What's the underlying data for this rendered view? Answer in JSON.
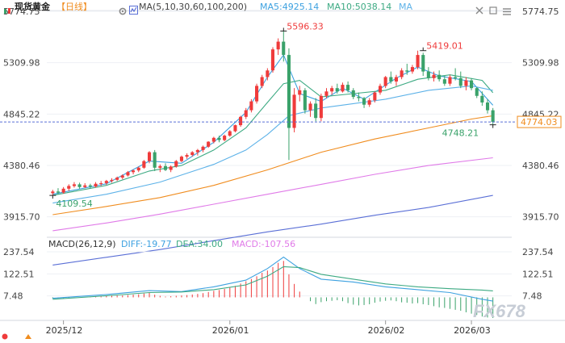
{
  "header": {
    "symbol": "现货黄金",
    "period": "【日线】",
    "ma_label": "MA(5,10,30,60,100,200)",
    "ma5_label": "MA5:4925.14",
    "ma10_label": "MA10:5038.14",
    "ma_extra": "MA"
  },
  "macd": {
    "title": "MACD(26,12,9)",
    "diff_label": "DIFF:-19.77",
    "dea_label": "DEA:34.00",
    "macd_label": "MACD:-107.56"
  },
  "watermark": "FX678",
  "colors": {
    "up": "#ef3b3b",
    "down": "#3aa26a",
    "ma5": "#3da1e0",
    "ma10": "#3daa83",
    "ma30": "#5db2e8",
    "ma60": "#f08c1e",
    "ma100": "#e07ae8",
    "ma200": "#5a6fd6",
    "annot_high": "#ef3b3b",
    "annot_low": "#3aa26a",
    "current": "#f08c1e",
    "diff": "#3da1e0",
    "dea": "#3daa83"
  },
  "chart_data": {
    "type": "candlestick",
    "price_axis": {
      "ticks": [
        "5774.75",
        "5309.98",
        "4845.22",
        "4380.46",
        "3915.70"
      ],
      "range": [
        3760,
        5774.75
      ]
    },
    "macd_axis": {
      "ticks": [
        "237.54",
        "122.51",
        "7.48"
      ],
      "range": [
        -107.56,
        237.54
      ]
    },
    "x_ticks": [
      "2025/12",
      "2026/01",
      "2026/02",
      "2026/03"
    ],
    "annotations": {
      "high": "5596.33",
      "high_value": 5596.33,
      "recent_high": "5419.01",
      "recent_high_value": 5419.01,
      "start_low": "4109.54",
      "start_low_value": 4109.54,
      "recent_low": "4748.21",
      "recent_low_value": 4748.21,
      "current": "4774.03",
      "current_value": 4774.03
    },
    "candles": [
      {
        "o": 4130,
        "h": 4160,
        "l": 4110,
        "c": 4145
      },
      {
        "o": 4145,
        "h": 4175,
        "l": 4120,
        "c": 4135
      },
      {
        "o": 4135,
        "h": 4185,
        "l": 4125,
        "c": 4170
      },
      {
        "o": 4170,
        "h": 4210,
        "l": 4150,
        "c": 4195
      },
      {
        "o": 4195,
        "h": 4230,
        "l": 4180,
        "c": 4210
      },
      {
        "o": 4210,
        "h": 4225,
        "l": 4170,
        "c": 4185
      },
      {
        "o": 4185,
        "h": 4220,
        "l": 4175,
        "c": 4200
      },
      {
        "o": 4200,
        "h": 4215,
        "l": 4170,
        "c": 4190
      },
      {
        "o": 4190,
        "h": 4230,
        "l": 4180,
        "c": 4215
      },
      {
        "o": 4215,
        "h": 4240,
        "l": 4195,
        "c": 4220
      },
      {
        "o": 4220,
        "h": 4250,
        "l": 4205,
        "c": 4240
      },
      {
        "o": 4240,
        "h": 4265,
        "l": 4225,
        "c": 4250
      },
      {
        "o": 4250,
        "h": 4280,
        "l": 4240,
        "c": 4270
      },
      {
        "o": 4270,
        "h": 4300,
        "l": 4255,
        "c": 4290
      },
      {
        "o": 4290,
        "h": 4330,
        "l": 4280,
        "c": 4320
      },
      {
        "o": 4320,
        "h": 4345,
        "l": 4300,
        "c": 4335
      },
      {
        "o": 4335,
        "h": 4370,
        "l": 4320,
        "c": 4360
      },
      {
        "o": 4360,
        "h": 4430,
        "l": 4350,
        "c": 4420
      },
      {
        "o": 4420,
        "h": 4510,
        "l": 4400,
        "c": 4500
      },
      {
        "o": 4500,
        "h": 4520,
        "l": 4330,
        "c": 4360
      },
      {
        "o": 4360,
        "h": 4390,
        "l": 4320,
        "c": 4375
      },
      {
        "o": 4375,
        "h": 4400,
        "l": 4330,
        "c": 4340
      },
      {
        "o": 4340,
        "h": 4380,
        "l": 4320,
        "c": 4370
      },
      {
        "o": 4370,
        "h": 4430,
        "l": 4360,
        "c": 4420
      },
      {
        "o": 4420,
        "h": 4470,
        "l": 4410,
        "c": 4460
      },
      {
        "o": 4460,
        "h": 4490,
        "l": 4440,
        "c": 4475
      },
      {
        "o": 4475,
        "h": 4510,
        "l": 4460,
        "c": 4500
      },
      {
        "o": 4500,
        "h": 4530,
        "l": 4470,
        "c": 4520
      },
      {
        "o": 4520,
        "h": 4560,
        "l": 4500,
        "c": 4550
      },
      {
        "o": 4550,
        "h": 4600,
        "l": 4540,
        "c": 4595
      },
      {
        "o": 4595,
        "h": 4640,
        "l": 4580,
        "c": 4630
      },
      {
        "o": 4630,
        "h": 4650,
        "l": 4590,
        "c": 4610
      },
      {
        "o": 4610,
        "h": 4660,
        "l": 4600,
        "c": 4650
      },
      {
        "o": 4650,
        "h": 4700,
        "l": 4640,
        "c": 4690
      },
      {
        "o": 4690,
        "h": 4750,
        "l": 4680,
        "c": 4745
      },
      {
        "o": 4745,
        "h": 4830,
        "l": 4730,
        "c": 4820
      },
      {
        "o": 4820,
        "h": 4900,
        "l": 4800,
        "c": 4880
      },
      {
        "o": 4880,
        "h": 4980,
        "l": 4860,
        "c": 4960
      },
      {
        "o": 4960,
        "h": 5120,
        "l": 4940,
        "c": 5100
      },
      {
        "o": 5100,
        "h": 5200,
        "l": 5080,
        "c": 5180
      },
      {
        "o": 5180,
        "h": 5260,
        "l": 5150,
        "c": 5240
      },
      {
        "o": 5240,
        "h": 5450,
        "l": 5220,
        "c": 5430
      },
      {
        "o": 5430,
        "h": 5530,
        "l": 5380,
        "c": 5500
      },
      {
        "o": 5500,
        "h": 5596.33,
        "l": 5320,
        "c": 5380
      },
      {
        "o": 5380,
        "h": 5440,
        "l": 4430,
        "c": 4720
      },
      {
        "o": 4720,
        "h": 5080,
        "l": 4680,
        "c": 5020
      },
      {
        "o": 5020,
        "h": 5100,
        "l": 4960,
        "c": 5060
      },
      {
        "o": 5060,
        "h": 5080,
        "l": 4850,
        "c": 4880
      },
      {
        "o": 4880,
        "h": 4960,
        "l": 4820,
        "c": 4940
      },
      {
        "o": 4940,
        "h": 4990,
        "l": 4780,
        "c": 4810
      },
      {
        "o": 4810,
        "h": 5030,
        "l": 4780,
        "c": 5010
      },
      {
        "o": 5010,
        "h": 5080,
        "l": 4990,
        "c": 5050
      },
      {
        "o": 5050,
        "h": 5100,
        "l": 5020,
        "c": 5080
      },
      {
        "o": 5080,
        "h": 5120,
        "l": 5030,
        "c": 5050
      },
      {
        "o": 5050,
        "h": 5130,
        "l": 5040,
        "c": 5110
      },
      {
        "o": 5110,
        "h": 5140,
        "l": 5040,
        "c": 5060
      },
      {
        "o": 5060,
        "h": 5080,
        "l": 4980,
        "c": 5000
      },
      {
        "o": 5000,
        "h": 5040,
        "l": 4960,
        "c": 4990
      },
      {
        "o": 4990,
        "h": 5000,
        "l": 4900,
        "c": 4930
      },
      {
        "o": 4930,
        "h": 4990,
        "l": 4910,
        "c": 4970
      },
      {
        "o": 4970,
        "h": 5050,
        "l": 4950,
        "c": 5040
      },
      {
        "o": 5040,
        "h": 5120,
        "l": 5020,
        "c": 5100
      },
      {
        "o": 5100,
        "h": 5190,
        "l": 5080,
        "c": 5180
      },
      {
        "o": 5180,
        "h": 5230,
        "l": 5120,
        "c": 5140
      },
      {
        "o": 5140,
        "h": 5200,
        "l": 5100,
        "c": 5180
      },
      {
        "o": 5180,
        "h": 5260,
        "l": 5160,
        "c": 5240
      },
      {
        "o": 5240,
        "h": 5300,
        "l": 5200,
        "c": 5230
      },
      {
        "o": 5230,
        "h": 5290,
        "l": 5210,
        "c": 5270
      },
      {
        "o": 5270,
        "h": 5419.01,
        "l": 5250,
        "c": 5380
      },
      {
        "o": 5380,
        "h": 5400,
        "l": 5190,
        "c": 5230
      },
      {
        "o": 5230,
        "h": 5270,
        "l": 5150,
        "c": 5170
      },
      {
        "o": 5170,
        "h": 5230,
        "l": 5140,
        "c": 5200
      },
      {
        "o": 5200,
        "h": 5240,
        "l": 5140,
        "c": 5160
      },
      {
        "o": 5160,
        "h": 5190,
        "l": 5100,
        "c": 5120
      },
      {
        "o": 5120,
        "h": 5200,
        "l": 5100,
        "c": 5180
      },
      {
        "o": 5180,
        "h": 5260,
        "l": 5150,
        "c": 5170
      },
      {
        "o": 5170,
        "h": 5230,
        "l": 5080,
        "c": 5100
      },
      {
        "o": 5100,
        "h": 5180,
        "l": 5060,
        "c": 5150
      },
      {
        "o": 5150,
        "h": 5170,
        "l": 5060,
        "c": 5080
      },
      {
        "o": 5080,
        "h": 5090,
        "l": 4990,
        "c": 5010
      },
      {
        "o": 5010,
        "h": 5050,
        "l": 4920,
        "c": 4950
      },
      {
        "o": 4950,
        "h": 4980,
        "l": 4850,
        "c": 4880
      },
      {
        "o": 4880,
        "h": 4900,
        "l": 4748.21,
        "c": 4774.03
      }
    ],
    "ma": {
      "ma5": [
        [
          0,
          4120
        ],
        [
          10,
          4215
        ],
        [
          18,
          4420
        ],
        [
          24,
          4400
        ],
        [
          30,
          4590
        ],
        [
          36,
          4860
        ],
        [
          40,
          5180
        ],
        [
          43,
          5380
        ],
        [
          46,
          5030
        ],
        [
          50,
          4960
        ],
        [
          54,
          5080
        ],
        [
          58,
          4980
        ],
        [
          64,
          5170
        ],
        [
          68,
          5270
        ],
        [
          72,
          5190
        ],
        [
          78,
          5140
        ],
        [
          82,
          4925.14
        ]
      ],
      "ma10": [
        [
          0,
          4110
        ],
        [
          10,
          4200
        ],
        [
          18,
          4330
        ],
        [
          24,
          4380
        ],
        [
          30,
          4520
        ],
        [
          36,
          4720
        ],
        [
          40,
          4950
        ],
        [
          43,
          5120
        ],
        [
          46,
          5150
        ],
        [
          50,
          5000
        ],
        [
          56,
          5030
        ],
        [
          62,
          5060
        ],
        [
          68,
          5160
        ],
        [
          74,
          5200
        ],
        [
          80,
          5150
        ],
        [
          82,
          5038.14
        ]
      ],
      "ma30": [
        [
          0,
          4040
        ],
        [
          10,
          4120
        ],
        [
          20,
          4230
        ],
        [
          30,
          4390
        ],
        [
          36,
          4520
        ],
        [
          40,
          4660
        ],
        [
          44,
          4830
        ],
        [
          50,
          4900
        ],
        [
          56,
          4940
        ],
        [
          62,
          4980
        ],
        [
          70,
          5060
        ],
        [
          78,
          5100
        ],
        [
          82,
          5060
        ]
      ],
      "ma60": [
        [
          0,
          3935
        ],
        [
          10,
          4010
        ],
        [
          20,
          4090
        ],
        [
          30,
          4200
        ],
        [
          40,
          4340
        ],
        [
          50,
          4500
        ],
        [
          60,
          4620
        ],
        [
          70,
          4720
        ],
        [
          78,
          4800
        ],
        [
          82,
          4830
        ]
      ],
      "ma100": [
        [
          0,
          3790
        ],
        [
          10,
          3860
        ],
        [
          20,
          3940
        ],
        [
          30,
          4030
        ],
        [
          40,
          4120
        ],
        [
          50,
          4210
        ],
        [
          60,
          4300
        ],
        [
          70,
          4380
        ],
        [
          82,
          4450
        ]
      ],
      "ma200": [
        [
          0,
          3480
        ],
        [
          10,
          3550
        ],
        [
          20,
          3620
        ],
        [
          30,
          3700
        ],
        [
          40,
          3780
        ],
        [
          50,
          3850
        ],
        [
          60,
          3930
        ],
        [
          70,
          4000
        ],
        [
          82,
          4110
        ]
      ]
    },
    "macd_series": {
      "diff": [
        [
          0,
          -5
        ],
        [
          10,
          15
        ],
        [
          18,
          35
        ],
        [
          24,
          30
        ],
        [
          30,
          55
        ],
        [
          36,
          90
        ],
        [
          40,
          150
        ],
        [
          43,
          210
        ],
        [
          46,
          150
        ],
        [
          50,
          95
        ],
        [
          56,
          80
        ],
        [
          62,
          55
        ],
        [
          68,
          40
        ],
        [
          74,
          25
        ],
        [
          80,
          -10
        ],
        [
          82,
          -19.77
        ]
      ],
      "dea": [
        [
          0,
          -10
        ],
        [
          10,
          8
        ],
        [
          18,
          25
        ],
        [
          24,
          28
        ],
        [
          30,
          40
        ],
        [
          36,
          65
        ],
        [
          40,
          110
        ],
        [
          43,
          160
        ],
        [
          46,
          155
        ],
        [
          50,
          120
        ],
        [
          56,
          95
        ],
        [
          62,
          70
        ],
        [
          68,
          55
        ],
        [
          74,
          45
        ],
        [
          80,
          38
        ],
        [
          82,
          34
        ]
      ],
      "hist": [
        -6,
        -5,
        -4,
        -3,
        -2,
        0,
        2,
        4,
        5,
        6,
        7,
        8,
        9,
        10,
        12,
        14,
        16,
        20,
        26,
        14,
        8,
        4,
        6,
        8,
        10,
        12,
        15,
        18,
        22,
        28,
        34,
        38,
        44,
        52,
        60,
        72,
        84,
        96,
        110,
        128,
        140,
        158,
        180,
        190,
        120,
        70,
        30,
        0,
        -20,
        -35,
        -25,
        -20,
        -18,
        -15,
        -20,
        -30,
        -38,
        -42,
        -40,
        -36,
        -28,
        -22,
        -18,
        -16,
        -20,
        -26,
        -28,
        -32,
        -30,
        -36,
        -40,
        -46,
        -52,
        -55,
        -60,
        -65,
        -70,
        -78,
        -85,
        -92,
        -100,
        -105,
        -107.56
      ]
    }
  }
}
